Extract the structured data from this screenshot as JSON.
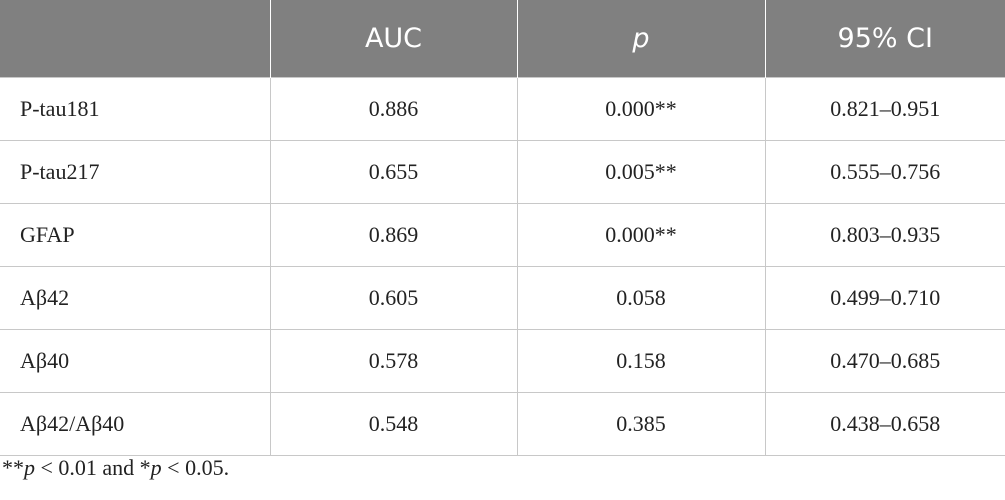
{
  "table": {
    "header": [
      "AUC",
      "p",
      "95% CI"
    ],
    "rows": [
      [
        "P-tau181",
        "0.886",
        "0.000**",
        "0.821–0.951"
      ],
      [
        "P-tau217",
        "0.655",
        "0.005**",
        "0.555–0.756"
      ],
      [
        "GFAP",
        "0.869",
        "0.000**",
        "0.803–0.935"
      ],
      [
        "Aβ42",
        "0.605",
        "0.058",
        "0.499–0.710"
      ],
      [
        "Aβ40",
        "0.578",
        "0.158",
        "0.470–0.685"
      ],
      [
        "Aβ42/Aβ40",
        "0.548",
        "0.385",
        "0.438–0.658"
      ]
    ]
  },
  "footnote": [
    "**",
    "p",
    " < 0.01 and *",
    "p",
    " < 0.05."
  ]
}
